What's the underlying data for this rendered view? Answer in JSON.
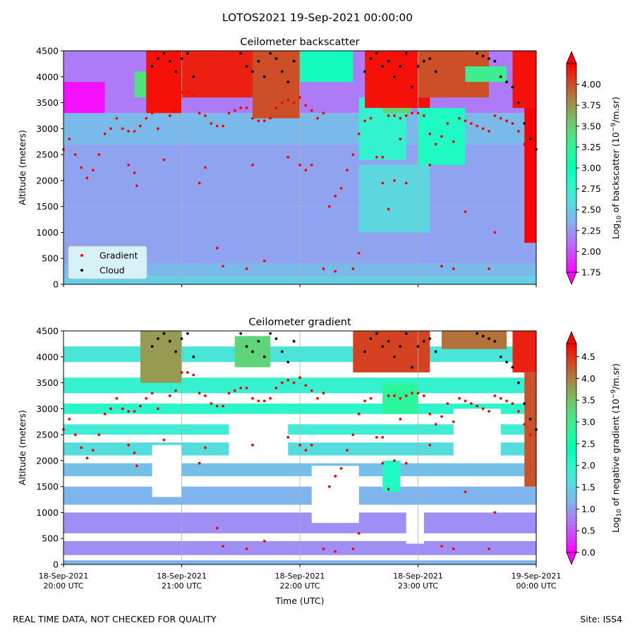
{
  "figure": {
    "suptitle": "LOTOS2021 19-Sep-2021 00:00:00",
    "footer_left": "REAL TIME DATA, NOT CHECKED FOR QUALITY",
    "footer_right": "Site: ISS4"
  },
  "colors": {
    "gradient_marker": "#ff0000",
    "cloud_marker": "#000000",
    "legend_bg": "#d6f2f7",
    "colormap": "rainbow"
  },
  "chart_data": [
    {
      "type": "heatmap",
      "title": "Ceilometer backscatter",
      "ylabel": "Altitude (meters)",
      "xlabel": "",
      "ylim": [
        0,
        4500
      ],
      "yticks": [
        0,
        500,
        1000,
        1500,
        2000,
        2500,
        3000,
        3500,
        4000,
        4500
      ],
      "x_hours": [
        20,
        21,
        22,
        23,
        24
      ],
      "xtick_labels": [],
      "grid": "vertical lines at each hour",
      "legend": {
        "placement": "lower-left",
        "entries": [
          "Gradient",
          "Cloud"
        ]
      },
      "colorbar": {
        "label": "Log10 of backscatter (10^-9/m.sr)",
        "label_parts": [
          "Log",
          "10",
          " of backscatter (10",
          "−9",
          "/m.sr)"
        ],
        "range": [
          1.75,
          4.25
        ],
        "ticks": [
          "1.75",
          "2.00",
          "2.25",
          "2.50",
          "2.75",
          "3.00",
          "3.25",
          "3.50",
          "3.75",
          "4.00"
        ],
        "extend": "both"
      },
      "bands": [
        {
          "alt": [
            0,
            150
          ],
          "level": 2.5
        },
        {
          "alt": [
            150,
            400
          ],
          "level": 2.4
        },
        {
          "alt": [
            400,
            1500
          ],
          "level": 2.3
        },
        {
          "alt": [
            1500,
            2700
          ],
          "level": 2.3
        },
        {
          "alt": [
            2700,
            3300
          ],
          "level": 2.4
        },
        {
          "alt": [
            3300,
            4500
          ],
          "level": 2.15
        }
      ],
      "patches": [
        {
          "t": [
            20.0,
            20.35
          ],
          "alt": [
            3300,
            3900
          ],
          "level": 1.8
        },
        {
          "t": [
            20.6,
            20.85
          ],
          "alt": [
            3600,
            4100
          ],
          "level": 3.4
        },
        {
          "t": [
            20.7,
            21.0
          ],
          "alt": [
            3300,
            4500
          ],
          "level": 4.2
        },
        {
          "t": [
            21.0,
            21.6
          ],
          "alt": [
            3600,
            4500
          ],
          "level": 4.15
        },
        {
          "t": [
            21.6,
            22.0
          ],
          "alt": [
            3200,
            4500
          ],
          "level": 4.0
        },
        {
          "t": [
            22.0,
            22.45
          ],
          "alt": [
            3900,
            4500
          ],
          "level": 2.9
        },
        {
          "t": [
            22.55,
            22.75
          ],
          "alt": [
            3600,
            4500
          ],
          "level": 3.0
        },
        {
          "t": [
            22.5,
            22.9
          ],
          "alt": [
            2400,
            3600
          ],
          "level": 2.75
        },
        {
          "t": [
            23.0,
            23.4
          ],
          "alt": [
            2300,
            3400
          ],
          "level": 2.85
        },
        {
          "t": [
            22.7,
            22.95
          ],
          "alt": [
            3300,
            4300
          ],
          "level": 3.5
        },
        {
          "t": [
            22.55,
            23.1
          ],
          "alt": [
            3400,
            4500
          ],
          "level": 4.2
        },
        {
          "t": [
            23.0,
            23.6
          ],
          "alt": [
            3600,
            4500
          ],
          "level": 4.0
        },
        {
          "t": [
            23.4,
            23.75
          ],
          "alt": [
            3900,
            4200
          ],
          "level": 3.3
        },
        {
          "t": [
            22.5,
            23.1
          ],
          "alt": [
            1000,
            2300
          ],
          "level": 2.55
        },
        {
          "t": [
            23.8,
            24.0
          ],
          "alt": [
            3400,
            4500
          ],
          "level": 4.2
        },
        {
          "t": [
            23.9,
            24.0
          ],
          "alt": [
            800,
            3400
          ],
          "level": 4.25
        }
      ]
    },
    {
      "type": "heatmap",
      "title": "Ceilometer gradient",
      "ylabel": "Altitude (meters)",
      "xlabel": "Time (UTC)",
      "ylim": [
        0,
        4500
      ],
      "yticks": [
        0,
        500,
        1000,
        1500,
        2000,
        2500,
        3000,
        3500,
        4000,
        4500
      ],
      "x_hours": [
        20,
        21,
        22,
        23,
        24
      ],
      "xtick_labels": [
        [
          "18-Sep-2021",
          "20:00 UTC"
        ],
        [
          "18-Sep-2021",
          "21:00 UTC"
        ],
        [
          "18-Sep-2021",
          "22:00 UTC"
        ],
        [
          "18-Sep-2021",
          "23:00 UTC"
        ],
        [
          "19-Sep-2021",
          "00:00 UTC"
        ]
      ],
      "grid": "vertical lines at each hour",
      "colorbar": {
        "label": "Log10 of negative gradient (10^-9/m.sr)",
        "label_parts": [
          "Log",
          "10",
          " of negative gradient (10",
          "−9",
          "/m.sr)"
        ],
        "range": [
          0.0,
          4.8
        ],
        "ticks": [
          "0.0",
          "0.5",
          "1.0",
          "1.5",
          "2.0",
          "2.5",
          "3.0",
          "3.5",
          "4.0",
          "4.5"
        ],
        "extend": "both"
      },
      "bands": [
        {
          "alt": [
            0,
            80
          ],
          "level": 1.2
        },
        {
          "alt": [
            180,
            450
          ],
          "level": 0.9
        },
        {
          "alt": [
            600,
            1000
          ],
          "level": 0.9
        },
        {
          "alt": [
            1150,
            1500
          ],
          "level": 1.2
        },
        {
          "alt": [
            1700,
            1950
          ],
          "level": 1.3
        },
        {
          "alt": [
            2100,
            2350
          ],
          "level": 1.6
        },
        {
          "alt": [
            2500,
            2700
          ],
          "level": 1.8
        },
        {
          "alt": [
            2900,
            3100
          ],
          "level": 2.0
        },
        {
          "alt": [
            3300,
            3600
          ],
          "level": 1.9
        },
        {
          "alt": [
            3900,
            4200
          ],
          "level": 1.7
        }
      ],
      "white_gaps": [
        {
          "t": [
            20.75,
            21.0
          ],
          "alt": [
            1300,
            2300
          ]
        },
        {
          "t": [
            21.4,
            21.9
          ],
          "alt": [
            2100,
            2900
          ]
        },
        {
          "t": [
            22.1,
            22.5
          ],
          "alt": [
            800,
            1900
          ]
        },
        {
          "t": [
            22.9,
            23.05
          ],
          "alt": [
            400,
            1100
          ]
        },
        {
          "t": [
            23.3,
            23.7
          ],
          "alt": [
            2100,
            3000
          ]
        }
      ],
      "patches": [
        {
          "t": [
            20.65,
            21.0
          ],
          "alt": [
            3500,
            4500
          ],
          "level": 3.8
        },
        {
          "t": [
            21.45,
            21.75
          ],
          "alt": [
            3800,
            4400
          ],
          "level": 3.3
        },
        {
          "t": [
            22.45,
            23.1
          ],
          "alt": [
            3700,
            4500
          ],
          "level": 4.4
        },
        {
          "t": [
            23.2,
            23.75
          ],
          "alt": [
            4150,
            4500
          ],
          "level": 4.1
        },
        {
          "t": [
            22.7,
            23.0
          ],
          "alt": [
            2900,
            3500
          ],
          "level": 2.8
        },
        {
          "t": [
            22.7,
            22.85
          ],
          "alt": [
            1400,
            2000
          ],
          "level": 2.1
        },
        {
          "t": [
            23.8,
            24.0
          ],
          "alt": [
            3700,
            4500
          ],
          "level": 4.6
        },
        {
          "t": [
            23.9,
            24.0
          ],
          "alt": [
            1500,
            3700
          ],
          "level": 4.3
        }
      ]
    }
  ],
  "gradient_points": {
    "name": "Gradient",
    "t": [
      20.0,
      20.05,
      20.1,
      20.15,
      20.2,
      20.25,
      20.3,
      20.35,
      20.4,
      20.45,
      20.5,
      20.55,
      20.6,
      20.65,
      20.7,
      20.75,
      20.8,
      20.9,
      20.95,
      21.0,
      21.05,
      21.1,
      21.15,
      21.2,
      21.25,
      21.3,
      21.35,
      21.4,
      21.45,
      21.5,
      21.55,
      21.6,
      21.65,
      21.7,
      21.75,
      21.8,
      21.85,
      21.9,
      21.95,
      22.0,
      22.05,
      22.1,
      22.15,
      22.2,
      22.25,
      22.3,
      22.35,
      22.4,
      22.45,
      22.5,
      22.55,
      22.6,
      22.65,
      22.7,
      22.75,
      22.8,
      22.85,
      22.9,
      22.95,
      23.0,
      23.05,
      23.1,
      23.15,
      23.2,
      23.25,
      23.3,
      23.35,
      23.4,
      23.45,
      23.5,
      23.55,
      23.6,
      23.65,
      23.7,
      23.75,
      23.8,
      23.85,
      23.9,
      23.95,
      20.55,
      20.6,
      20.62,
      20.85,
      21.15,
      21.2,
      21.3,
      21.35,
      21.55,
      21.7,
      21.9,
      22.0,
      22.05,
      22.1,
      22.2,
      22.3,
      22.45,
      22.5,
      22.8,
      22.9,
      23.1,
      23.2,
      23.3,
      23.4,
      23.6,
      23.65,
      21.6,
      22.7,
      22.75,
      22.85
    ],
    "alt": [
      2600,
      2800,
      2500,
      2250,
      2050,
      2200,
      2500,
      2900,
      3000,
      3200,
      3000,
      2950,
      2950,
      3050,
      3200,
      3300,
      3000,
      3250,
      3350,
      3700,
      3700,
      3650,
      3300,
      3250,
      3100,
      3050,
      3050,
      3300,
      3350,
      3400,
      3400,
      3200,
      3150,
      3150,
      3200,
      3400,
      3500,
      3550,
      3500,
      3600,
      3450,
      3350,
      3200,
      3300,
      1500,
      1700,
      1850,
      2200,
      2500,
      2900,
      3150,
      3200,
      2450,
      2450,
      3250,
      3250,
      3200,
      3250,
      3300,
      3300,
      3250,
      2900,
      2700,
      2850,
      3100,
      2750,
      3200,
      3150,
      3100,
      3050,
      3000,
      2950,
      3250,
      3200,
      3150,
      3100,
      2950,
      2700,
      2500,
      2300,
      2150,
      1900,
      2400,
      1950,
      2250,
      700,
      350,
      300,
      450,
      2450,
      2300,
      2200,
      2300,
      300,
      250,
      300,
      600,
      2000,
      1950,
      2300,
      350,
      300,
      1400,
      300,
      1000,
      2300,
      1950,
      1450,
      2800
    ]
  },
  "cloud_points": {
    "name": "Cloud",
    "t": [
      20.75,
      20.8,
      20.85,
      20.9,
      20.95,
      21.0,
      21.05,
      21.1,
      21.5,
      21.55,
      21.6,
      21.65,
      21.7,
      21.75,
      21.8,
      21.85,
      21.9,
      21.95,
      22.55,
      22.6,
      22.65,
      22.7,
      22.75,
      22.8,
      22.85,
      22.9,
      22.95,
      23.0,
      23.05,
      23.1,
      23.15,
      23.5,
      23.55,
      23.6,
      23.65,
      23.7,
      23.75,
      23.8,
      23.85,
      23.9,
      23.95,
      24.0
    ],
    "alt": [
      4200,
      4350,
      4450,
      4300,
      4100,
      4350,
      4450,
      4000,
      4450,
      4200,
      4100,
      4300,
      4000,
      4450,
      4350,
      4100,
      3900,
      4300,
      4100,
      4350,
      4450,
      4200,
      4300,
      4000,
      4200,
      4450,
      3800,
      4200,
      4300,
      4350,
      4100,
      4450,
      4400,
      4350,
      4300,
      4000,
      3900,
      3800,
      3500,
      3100,
      2800,
      2600
    ]
  }
}
